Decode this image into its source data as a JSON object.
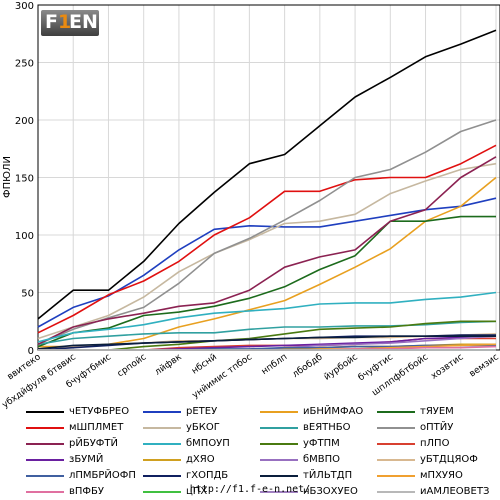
{
  "logo": {
    "text_f": "F",
    "accent": "1",
    "text_en": "EN",
    "accent_color": "#e98a10"
  },
  "footer": {
    "url": "http://f1.f-e-n.net/"
  },
  "chart_data": {
    "type": "line",
    "title": "",
    "xlabel": "",
    "ylabel": "ФПЮЛИ",
    "ylim": [
      0,
      300
    ],
    "yticks": [
      0,
      50,
      100,
      150,
      200,
      250,
      300
    ],
    "grid": true,
    "legend_position": "bottom",
    "categories": [
      "ввитеко",
      "убхдйфулв бтввис",
      "бчуфтбмис",
      "српойс",
      "лйфвк",
      "нбснй",
      "унйимис тпбос",
      "нпблп",
      "лбобдб",
      "йурбойс",
      "бчуфтис",
      "шплпфбтбойс",
      "хозвтис",
      "вемзис"
    ],
    "series": [
      {
        "name": "чЕТУФБРЕО",
        "color": "#000000",
        "values": [
          27,
          52,
          52,
          77,
          110,
          137,
          162,
          170,
          195,
          220,
          237,
          255,
          266,
          278
        ]
      },
      {
        "name": "рЕТЕУ",
        "color": "#1f3fbf",
        "values": [
          20,
          37,
          47,
          65,
          87,
          105,
          108,
          107,
          107,
          112,
          117,
          122,
          125,
          132
        ]
      },
      {
        "name": "иБНЙМФАО",
        "color": "#e8a020",
        "values": [
          3,
          3,
          5,
          10,
          20,
          27,
          35,
          43,
          57,
          72,
          88,
          112,
          125,
          150
        ]
      },
      {
        "name": "тЯУЕМ",
        "color": "#1c6b1c",
        "values": [
          3,
          15,
          19,
          30,
          33,
          38,
          45,
          55,
          70,
          82,
          112,
          112,
          116,
          116
        ]
      },
      {
        "name": "мШПЛМЕТ",
        "color": "#e01010",
        "values": [
          15,
          30,
          48,
          60,
          77,
          100,
          115,
          138,
          138,
          148,
          150,
          150,
          162,
          178
        ]
      },
      {
        "name": "уБКОГ",
        "color": "#c6b8a0",
        "values": [
          10,
          20,
          30,
          46,
          68,
          84,
          96,
          110,
          112,
          118,
          136,
          147,
          157,
          162
        ]
      },
      {
        "name": "вЕЯТНБО",
        "color": "#30a0a0",
        "values": [
          5,
          10,
          12,
          14,
          15,
          15,
          18,
          20,
          20,
          21,
          21,
          22,
          24,
          25
        ]
      },
      {
        "name": "оПТЙУ",
        "color": "#909090",
        "values": [
          5,
          18,
          28,
          37,
          58,
          84,
          97,
          113,
          130,
          150,
          157,
          172,
          190,
          200
        ]
      },
      {
        "name": "рЙБУФТЙ",
        "color": "#8b2252",
        "values": [
          5,
          20,
          27,
          32,
          38,
          41,
          52,
          72,
          81,
          87,
          112,
          122,
          150,
          168
        ]
      },
      {
        "name": "бМПОУП",
        "color": "#30b0c0",
        "values": [
          7,
          15,
          18,
          22,
          28,
          32,
          34,
          36,
          40,
          41,
          41,
          44,
          46,
          50
        ]
      },
      {
        "name": "уФТПМ",
        "color": "#4a7a10",
        "values": [
          0,
          0,
          0,
          3,
          5,
          8,
          10,
          14,
          18,
          19,
          20,
          23,
          25,
          25
        ]
      },
      {
        "name": "пЛПО",
        "color": "#d84030",
        "values": [
          0,
          0,
          0,
          0,
          2,
          3,
          4,
          4,
          4,
          5,
          7,
          10,
          10,
          10
        ]
      },
      {
        "name": "зБУМЙ",
        "color": "#6a20a0",
        "values": [
          0,
          0,
          0,
          0,
          1,
          2,
          3,
          4,
          5,
          6,
          7,
          10,
          11,
          12
        ]
      },
      {
        "name": "дХЯО",
        "color": "#d0a020",
        "values": [
          0,
          0,
          0,
          0,
          0,
          0,
          0,
          1,
          2,
          3,
          3,
          4,
          5,
          5
        ]
      },
      {
        "name": "бМВПО",
        "color": "#9870c0",
        "values": [
          0,
          0,
          0,
          0,
          0,
          0,
          0,
          2,
          4,
          5,
          6,
          8,
          10,
          12
        ]
      },
      {
        "name": "уБТДЦЯОФ",
        "color": "#d8b890",
        "values": [
          1,
          3,
          5,
          6,
          8,
          8,
          9,
          10,
          10,
          11,
          11,
          12,
          13,
          14
        ]
      },
      {
        "name": "лПМБРЙОФП",
        "color": "#4060a0",
        "values": [
          0,
          0,
          0,
          0,
          0,
          1,
          1,
          2,
          2,
          3,
          3,
          4,
          4,
          4
        ]
      },
      {
        "name": "гХОПДБ",
        "color": "#102060",
        "values": [
          0,
          2,
          4,
          6,
          7,
          8,
          9,
          10,
          11,
          12,
          12,
          12,
          13,
          13
        ]
      },
      {
        "name": "тЙЛЬТДП",
        "color": "#0a1e3c",
        "values": [
          1,
          4,
          5,
          6,
          7,
          8,
          9,
          10,
          11,
          11,
          12,
          12,
          12,
          12
        ]
      },
      {
        "name": "мПХУЯО",
        "color": "#f0a030",
        "values": [
          0,
          0,
          0,
          0,
          0,
          0,
          0,
          0,
          1,
          1,
          2,
          3,
          4,
          5
        ]
      },
      {
        "name": "вПФБУ",
        "color": "#e070a0",
        "values": [
          0,
          0,
          0,
          0,
          0,
          0,
          0,
          0,
          0,
          1,
          1,
          2,
          2,
          3
        ]
      },
      {
        "name": "цПХ",
        "color": "#40c040",
        "values": [
          0,
          0,
          0,
          0,
          0,
          0,
          0,
          0,
          0,
          0,
          0,
          0,
          0,
          0
        ]
      },
      {
        "name": "нБЗОХУЕО",
        "color": "#a080c0",
        "values": [
          0,
          0,
          0,
          0,
          0,
          0,
          0,
          0,
          0,
          0,
          0,
          0,
          0,
          0
        ]
      },
      {
        "name": "иАМЛЕОВЕТЗ",
        "color": "#b8b8b8",
        "values": [
          0,
          0,
          0,
          0,
          0,
          0,
          0,
          0,
          0,
          0,
          0,
          0,
          0,
          0
        ]
      }
    ]
  }
}
